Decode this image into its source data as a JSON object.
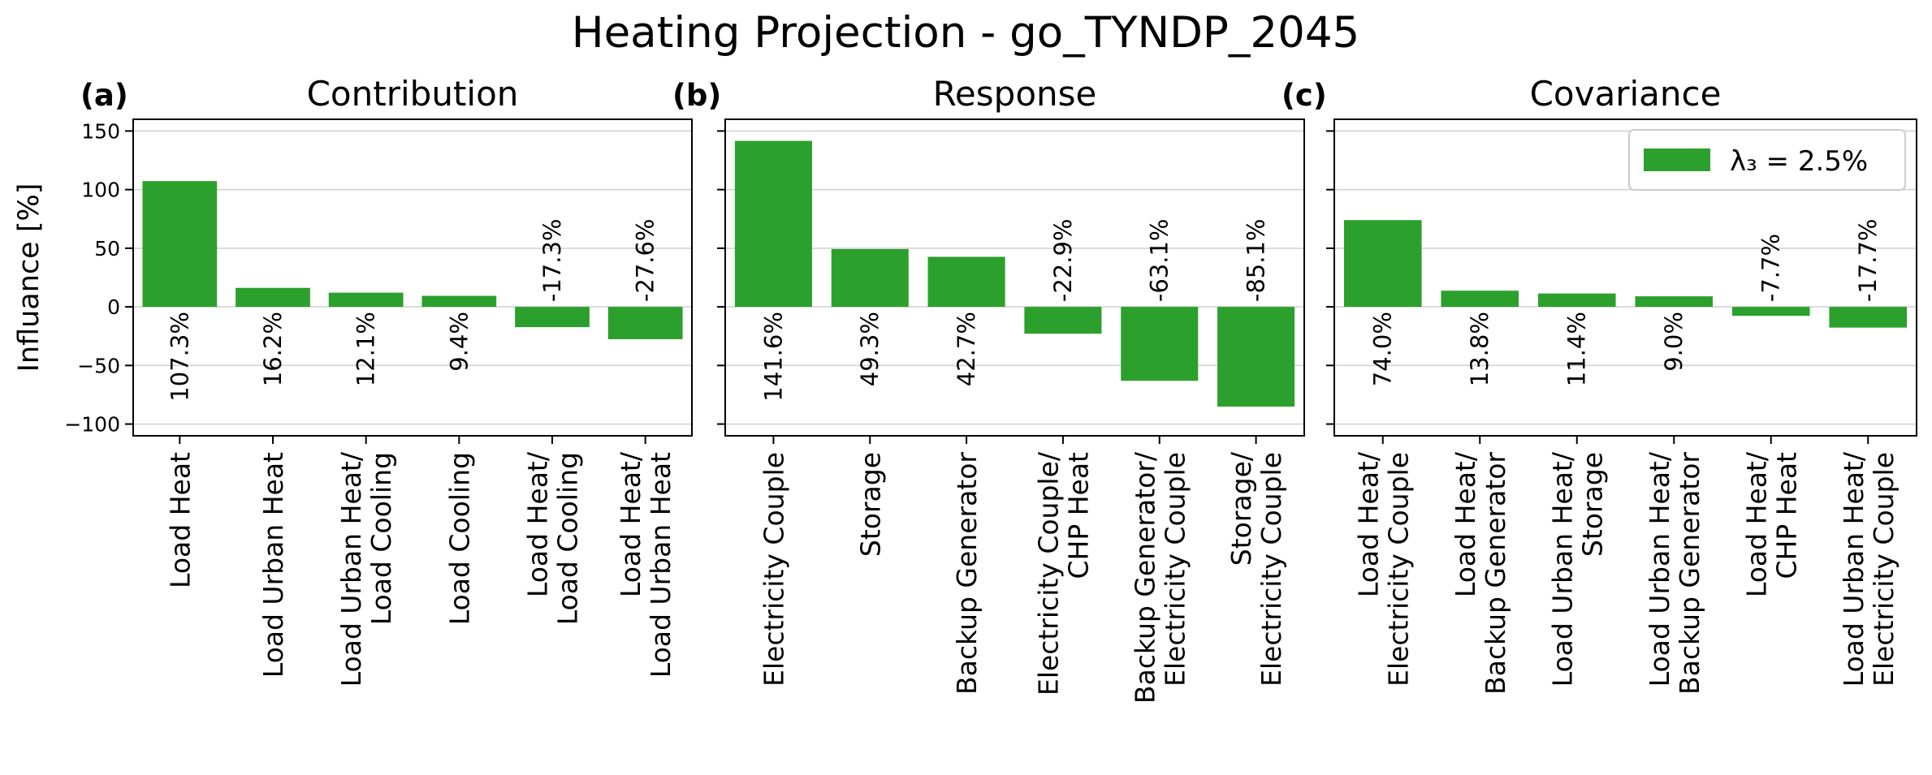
{
  "figure": {
    "title": "Heating Projection - go_TYNDP_2045",
    "ylabel": "Influance [%]",
    "yticks": [
      150,
      100,
      50,
      0,
      -50,
      -100
    ],
    "ytick_labels": [
      "150",
      "100",
      "50",
      "0",
      "−50",
      "−100"
    ],
    "legend": {
      "label": "λ₃ = 2.5%",
      "color": "#2ca02c"
    }
  },
  "colors": {
    "bar": "#2ca02c",
    "grid": "#d3d3d3",
    "axis": "#000000"
  },
  "chart_data": [
    {
      "type": "bar",
      "panel_label": "(a)",
      "title": "Contribution",
      "categories": [
        "Load Heat",
        "Load Urban Heat",
        "Load Urban Heat/\nLoad Cooling",
        "Load Cooling",
        "Load Heat/\nLoad Cooling",
        "Load Heat/\nLoad Urban Heat"
      ],
      "values": [
        107.3,
        16.2,
        12.1,
        9.4,
        -17.3,
        -27.6
      ],
      "value_labels": [
        "107.3%",
        "16.2%",
        "12.1%",
        "9.4%",
        "-17.3%",
        "-27.6%"
      ],
      "ylabel": "Influance [%]",
      "ylim": [
        -110,
        160
      ],
      "grid": true
    },
    {
      "type": "bar",
      "panel_label": "(b)",
      "title": "Response",
      "categories": [
        "Electricity Couple",
        "Storage",
        "Backup Generator",
        "Electricity Couple/\nCHP Heat",
        "Backup Generator/\nElectricity Couple",
        "Storage/\nElectricity Couple"
      ],
      "values": [
        141.6,
        49.3,
        42.7,
        -22.9,
        -63.1,
        -85.1
      ],
      "value_labels": [
        "141.6%",
        "49.3%",
        "42.7%",
        "-22.9%",
        "-63.1%",
        "-85.1%"
      ],
      "ylim": [
        -110,
        160
      ],
      "grid": true
    },
    {
      "type": "bar",
      "panel_label": "(c)",
      "title": "Covariance",
      "categories": [
        "Load Heat/\nElectricity Couple",
        "Load Heat/\nBackup Generator",
        "Load Urban Heat/\nStorage",
        "Load Urban Heat/\nBackup Generator",
        "Load Heat/\nCHP Heat",
        "Load Urban Heat/\nElectricity Couple"
      ],
      "values": [
        74.0,
        13.8,
        11.4,
        9.0,
        -7.7,
        -17.7
      ],
      "value_labels": [
        "74.0%",
        "13.8%",
        "11.4%",
        "9.0%",
        "-7.7%",
        "-17.7%"
      ],
      "ylim": [
        -110,
        160
      ],
      "grid": true,
      "legend": "top-right"
    }
  ]
}
